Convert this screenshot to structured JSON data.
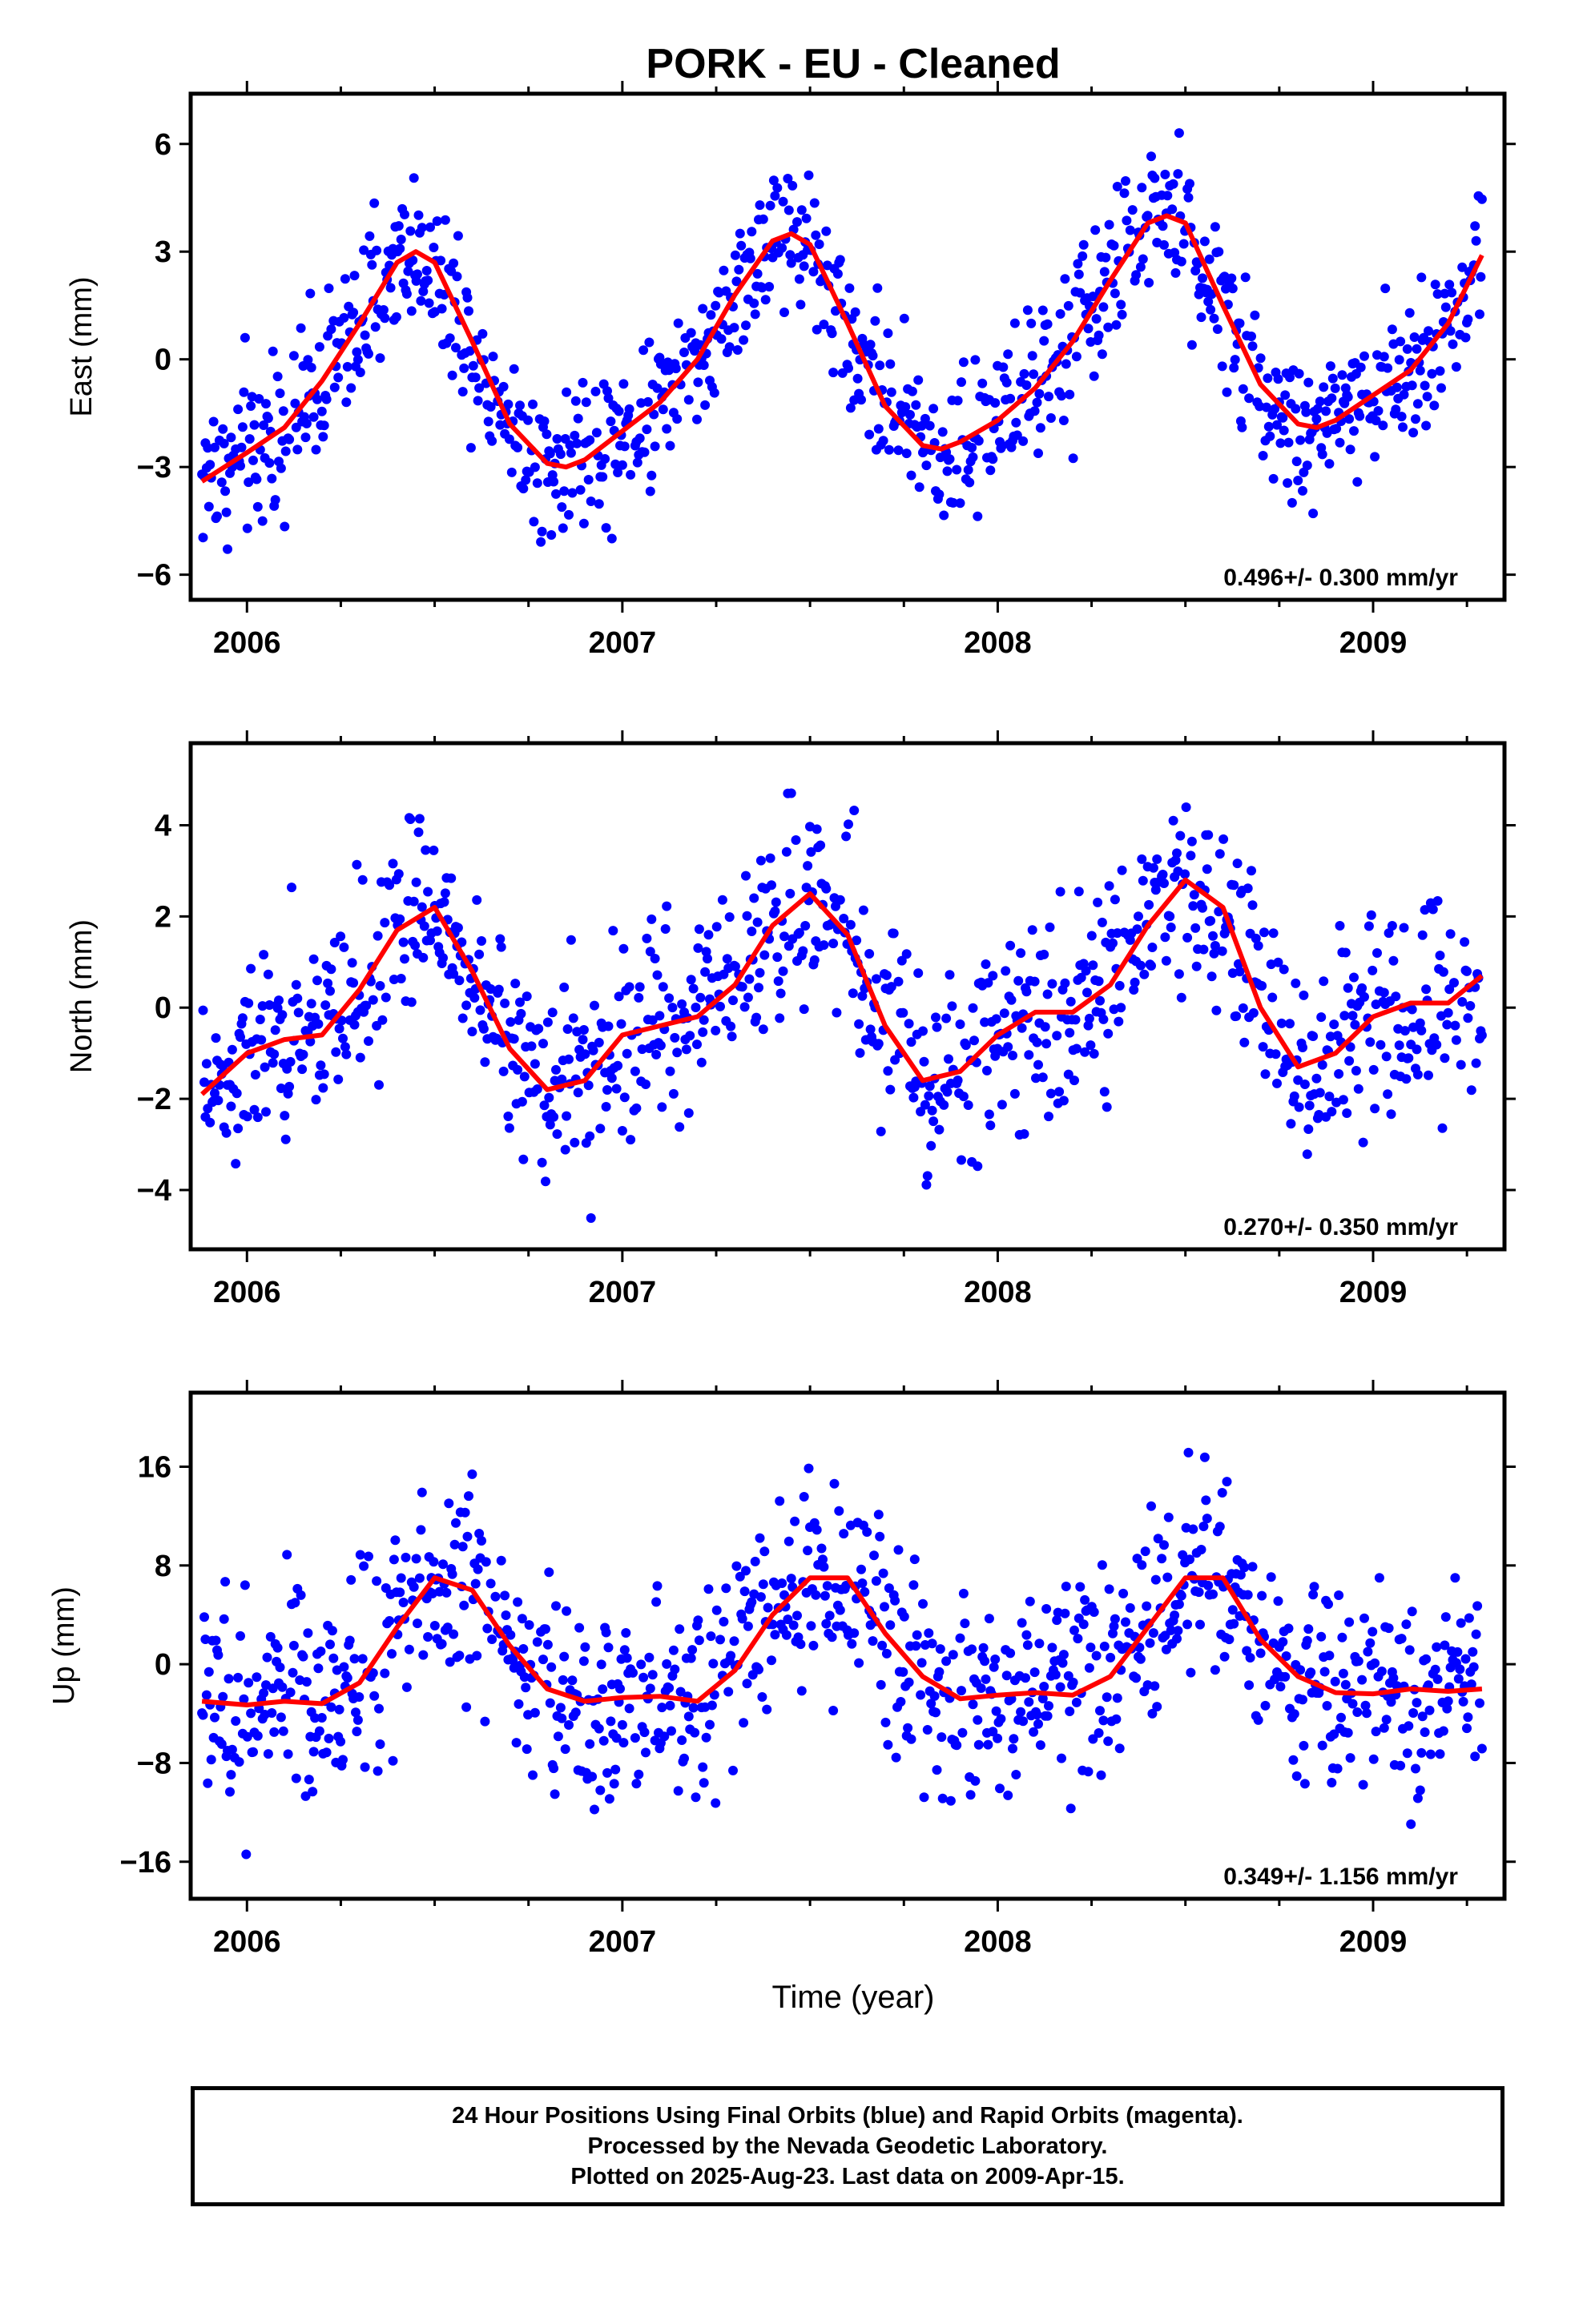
{
  "title": "PORK  - EU - Cleaned",
  "xlabel": "Time (year)",
  "footer": {
    "line1": "24 Hour Positions Using Final Orbits (blue) and Rapid Orbits (magenta).",
    "line2": "Processed by the Nevada Geodetic Laboratory.",
    "line3": "Plotted on 2025-Aug-23. Last data on 2009-Apr-15."
  },
  "colors": {
    "points": "#0000ff",
    "fit": "#ff0000",
    "frame": "#000000"
  },
  "chart_data": [
    {
      "type": "scatter",
      "ylabel": "East (mm)",
      "annotation": "0.496+/- 0.300 mm/yr",
      "xlim": [
        2005.85,
        2009.35
      ],
      "ylim": [
        -6.7,
        7.4
      ],
      "xticks": [
        2006,
        2007,
        2008,
        2009
      ],
      "yticks": [
        -6,
        -3,
        0,
        3,
        6
      ],
      "scatter_spread": 1.1,
      "fit_curve": {
        "x": [
          2005.88,
          2006.0,
          2006.1,
          2006.2,
          2006.3,
          2006.4,
          2006.45,
          2006.5,
          2006.6,
          2006.7,
          2006.8,
          2006.85,
          2006.9,
          2007.0,
          2007.1,
          2007.2,
          2007.3,
          2007.4,
          2007.45,
          2007.5,
          2007.6,
          2007.7,
          2007.8,
          2007.85,
          2007.9,
          2008.0,
          2008.1,
          2008.2,
          2008.3,
          2008.4,
          2008.45,
          2008.5,
          2008.6,
          2008.7,
          2008.8,
          2008.85,
          2008.9,
          2009.0,
          2009.1,
          2009.2,
          2009.29
        ],
        "y": [
          -3.4,
          -2.6,
          -1.9,
          -0.6,
          1.0,
          2.7,
          3.0,
          2.7,
          0.5,
          -1.8,
          -2.9,
          -3.0,
          -2.8,
          -2.0,
          -1.2,
          0.0,
          1.8,
          3.3,
          3.5,
          3.2,
          1.0,
          -1.3,
          -2.4,
          -2.5,
          -2.3,
          -1.7,
          -0.8,
          0.5,
          2.2,
          3.8,
          4.0,
          3.8,
          1.5,
          -0.7,
          -1.8,
          -1.9,
          -1.7,
          -1.0,
          -0.3,
          1.0,
          2.9
        ]
      }
    },
    {
      "type": "scatter",
      "ylabel": "North (mm)",
      "annotation": "0.270+/- 0.350 mm/yr",
      "xlim": [
        2005.85,
        2009.35
      ],
      "ylim": [
        -5.3,
        5.8
      ],
      "xticks": [
        2006,
        2007,
        2008,
        2009
      ],
      "yticks": [
        -4,
        -2,
        0,
        2,
        4
      ],
      "scatter_spread": 1.1,
      "fit_curve": {
        "x": [
          2005.88,
          2006.0,
          2006.1,
          2006.2,
          2006.3,
          2006.4,
          2006.5,
          2006.6,
          2006.7,
          2006.8,
          2006.9,
          2007.0,
          2007.1,
          2007.2,
          2007.3,
          2007.4,
          2007.5,
          2007.6,
          2007.7,
          2007.8,
          2007.9,
          2008.0,
          2008.1,
          2008.2,
          2008.3,
          2008.4,
          2008.5,
          2008.6,
          2008.7,
          2008.8,
          2008.9,
          2009.0,
          2009.1,
          2009.2,
          2009.29
        ],
        "y": [
          -1.9,
          -1.0,
          -0.7,
          -0.6,
          0.4,
          1.7,
          2.2,
          0.8,
          -0.9,
          -1.8,
          -1.6,
          -0.6,
          -0.4,
          -0.2,
          0.5,
          1.8,
          2.5,
          1.6,
          -0.4,
          -1.6,
          -1.4,
          -0.6,
          -0.1,
          -0.1,
          0.5,
          1.8,
          2.8,
          2.2,
          0.0,
          -1.3,
          -1.0,
          -0.2,
          0.1,
          0.1,
          0.7
        ]
      }
    },
    {
      "type": "scatter",
      "ylabel": "Up (mm)",
      "annotation": "0.349+/- 1.156 mm/yr",
      "xlim": [
        2005.85,
        2009.35
      ],
      "ylim": [
        -19,
        22
      ],
      "xticks": [
        2006,
        2007,
        2008,
        2009
      ],
      "yticks": [
        -16,
        -8,
        0,
        8,
        16
      ],
      "scatter_spread": 4.2,
      "fit_curve": {
        "x": [
          2005.88,
          2006.0,
          2006.1,
          2006.2,
          2006.3,
          2006.4,
          2006.5,
          2006.6,
          2006.7,
          2006.8,
          2006.9,
          2007.0,
          2007.1,
          2007.2,
          2007.3,
          2007.4,
          2007.5,
          2007.6,
          2007.7,
          2007.8,
          2007.9,
          2008.0,
          2008.1,
          2008.2,
          2008.3,
          2008.4,
          2008.5,
          2008.6,
          2008.7,
          2008.8,
          2008.9,
          2009.0,
          2009.1,
          2009.2,
          2009.29
        ],
        "y": [
          -3.0,
          -3.3,
          -3.0,
          -3.2,
          -1.5,
          3.0,
          7.0,
          6.0,
          1.5,
          -2.0,
          -3.0,
          -2.7,
          -2.6,
          -3.0,
          -0.5,
          4.0,
          7.0,
          7.0,
          2.5,
          -1.0,
          -2.8,
          -2.5,
          -2.3,
          -2.5,
          -1.0,
          3.0,
          7.0,
          7.0,
          2.0,
          -1.0,
          -2.3,
          -2.4,
          -2.0,
          -2.2,
          -2.0
        ]
      }
    }
  ]
}
